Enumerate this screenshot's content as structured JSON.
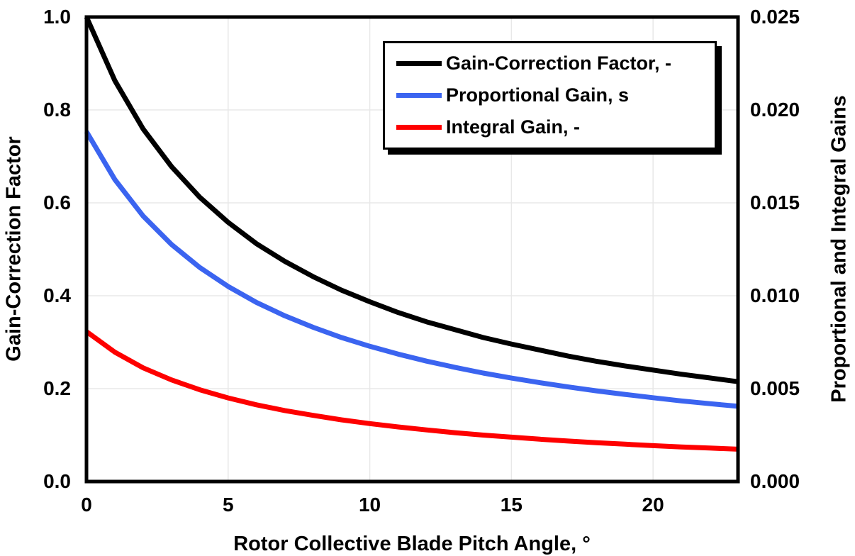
{
  "figure": {
    "background": "#ffffff",
    "frame_color": "#000000",
    "grid_color": "#e8e8e8"
  },
  "chart_data": {
    "type": "line",
    "title": "",
    "xlabel": "Rotor Collective Blade Pitch Angle, °",
    "ylabel_left": "Gain-Correction Factor",
    "ylabel_right": "Proportional and Integral Gains",
    "xlim": [
      0,
      23
    ],
    "ylim_left": [
      0.0,
      1.0
    ],
    "ylim_right": [
      0.0,
      0.025
    ],
    "grid": true,
    "legend_position": "upper right inside",
    "x_tick_values": [
      0,
      5,
      10,
      15,
      20
    ],
    "x_tick_labels": [
      "0",
      "5",
      "10",
      "15",
      "20"
    ],
    "left_tick_values": [
      1.0,
      0.8,
      0.6,
      0.4,
      0.2,
      0.0
    ],
    "left_tick_labels": [
      "1.0",
      "0.8",
      "0.6",
      "0.4",
      "0.2",
      "0.0"
    ],
    "right_tick_values": [
      0.025,
      0.02,
      0.015,
      0.01,
      0.005,
      0.0
    ],
    "right_tick_labels": [
      "0.025",
      "0.020",
      "0.015",
      "0.010",
      "0.005",
      "0.000"
    ],
    "x": [
      0,
      1,
      2,
      3,
      4,
      5,
      6,
      7,
      8,
      9,
      10,
      11,
      12,
      13,
      14,
      15,
      16,
      17,
      18,
      19,
      20,
      21,
      22,
      23
    ],
    "series": [
      {
        "name": "Gain-Correction Factor, -",
        "axis": "left",
        "color": "#000000",
        "values": [
          1.0,
          0.863,
          0.759,
          0.678,
          0.612,
          0.558,
          0.512,
          0.474,
          0.441,
          0.412,
          0.387,
          0.364,
          0.344,
          0.327,
          0.31,
          0.296,
          0.283,
          0.27,
          0.259,
          0.249,
          0.24,
          0.231,
          0.223,
          0.215
        ]
      },
      {
        "name": "Proportional Gain, s",
        "axis": "right",
        "color": "#3b64f0",
        "values": [
          0.01883,
          0.01625,
          0.01429,
          0.01276,
          0.01152,
          0.0105,
          0.00964,
          0.00892,
          0.0083,
          0.00775,
          0.00728,
          0.00686,
          0.00648,
          0.00615,
          0.00584,
          0.00557,
          0.00532,
          0.00509,
          0.00488,
          0.00469,
          0.00451,
          0.00434,
          0.00419,
          0.00405
        ]
      },
      {
        "name": "Integral Gain, -",
        "axis": "right",
        "color": "#fe0000",
        "values": [
          0.00807,
          0.00696,
          0.00612,
          0.00547,
          0.00494,
          0.0045,
          0.00413,
          0.00382,
          0.00356,
          0.00332,
          0.00312,
          0.00294,
          0.00278,
          0.00263,
          0.0025,
          0.00239,
          0.00228,
          0.00218,
          0.00209,
          0.00201,
          0.00193,
          0.00186,
          0.0018,
          0.00174
        ]
      }
    ]
  }
}
